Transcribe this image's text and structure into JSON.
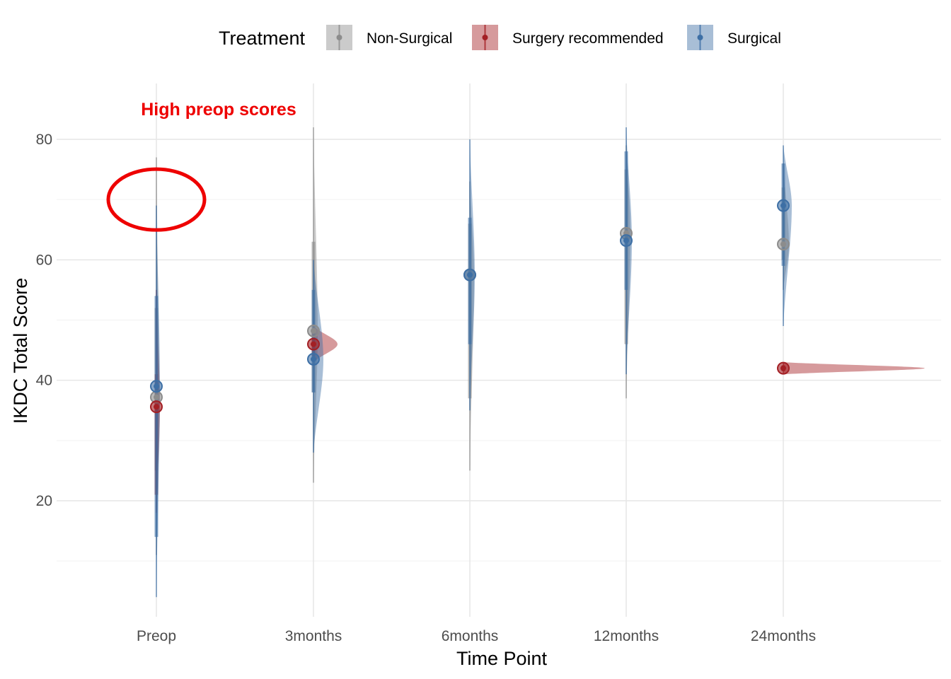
{
  "chart_data": {
    "type": "violin",
    "xlabel": "Time Point",
    "ylabel": "IKDC Total Score",
    "categories": [
      "Preop",
      "3months",
      "6months",
      "12months",
      "24months"
    ],
    "ylim": [
      0,
      88
    ],
    "yticks": [
      20,
      40,
      60,
      80
    ],
    "grid": true,
    "legend": {
      "title": "Treatment",
      "position": "top",
      "entries": [
        {
          "label": "Non-Surgical",
          "color": "#8c8c8c"
        },
        {
          "label": "Surgery recommended",
          "color": "#a31f24"
        },
        {
          "label": "Surgical",
          "color": "#3d6fa5"
        }
      ]
    },
    "annotation": {
      "text": "High preop scores",
      "color": "#ee0000",
      "category": "Preop",
      "y_center": 70
    },
    "series": [
      {
        "name": "Non-Surgical",
        "color": "#8c8c8c",
        "means": [
          37.2,
          48.2,
          57.5,
          64.4,
          62.6
        ],
        "ranges": [
          [
            11,
            77
          ],
          [
            23,
            82
          ],
          [
            25,
            73
          ],
          [
            37,
            79
          ],
          [
            55,
            76
          ]
        ],
        "inner": [
          [
            25,
            52
          ],
          [
            38,
            63
          ],
          [
            37,
            66
          ],
          [
            46,
            75
          ],
          [
            60,
            72
          ]
        ]
      },
      {
        "name": "Surgery recommended",
        "color": "#a31f24",
        "means": [
          35.6,
          46.0,
          null,
          null,
          42.0
        ],
        "ranges": [
          [
            18,
            55
          ],
          [
            43,
            49
          ],
          null,
          null,
          [
            41,
            43
          ]
        ],
        "inner": [
          [
            21,
            41
          ],
          [
            44,
            48
          ],
          null,
          null,
          [
            41.5,
            42.5
          ]
        ]
      },
      {
        "name": "Surgical",
        "color": "#3d6fa5",
        "means": [
          39.0,
          43.5,
          57.5,
          63.2,
          69.0
        ],
        "ranges": [
          [
            4,
            69
          ],
          [
            28,
            60
          ],
          [
            35,
            80
          ],
          [
            41,
            82
          ],
          [
            49,
            79
          ]
        ],
        "inner": [
          [
            14,
            54
          ],
          [
            38,
            55
          ],
          [
            46,
            67
          ],
          [
            55,
            78
          ],
          [
            59,
            76
          ]
        ]
      }
    ]
  }
}
